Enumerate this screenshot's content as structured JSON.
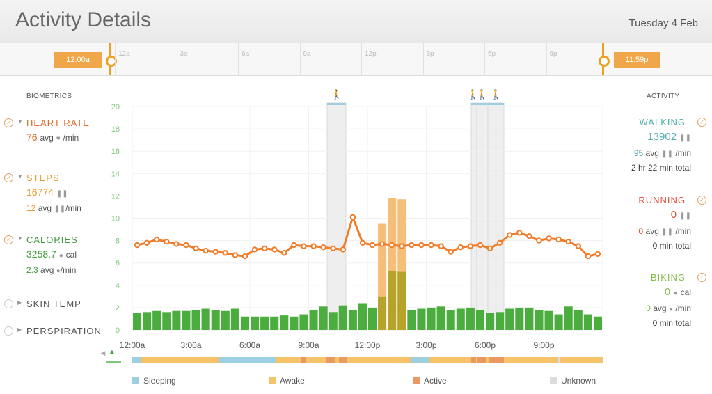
{
  "header": {
    "title": "Activity Details",
    "date": "Tuesday 4 Feb"
  },
  "timeline": {
    "start_label": "12:00a",
    "end_label": "11:59p",
    "ticks": [
      "12a",
      "3a",
      "6a",
      "9a",
      "12p",
      "3p",
      "6p",
      "9p"
    ]
  },
  "biometrics": {
    "section_label": "BIOMETRICS",
    "heart_rate": {
      "label": "HEART RATE",
      "value": "76",
      "unit_avg": "avg",
      "unit": "/min"
    },
    "steps": {
      "label": "STEPS",
      "value": "16774",
      "avg_value": "12",
      "avg_label": "avg",
      "unit": "/min"
    },
    "calories": {
      "label": "CALORIES",
      "value": "3258.7",
      "unit": "cal",
      "avg_value": "2.3",
      "avg_label": "avg",
      "rate_unit": "/min"
    },
    "skin_temp": {
      "label": "SKIN TEMP"
    },
    "perspiration": {
      "label": "PERSPIRATION"
    }
  },
  "activity": {
    "section_label": "ACTIVITY",
    "walking": {
      "label": "WALKING",
      "value": "13902",
      "avg_value": "95",
      "avg_label": "avg",
      "unit": "/min",
      "total": "2 hr 22 min total"
    },
    "running": {
      "label": "RUNNING",
      "value": "0",
      "avg_value": "0",
      "avg_label": "avg",
      "unit": "/min",
      "total": "0 min total"
    },
    "biking": {
      "label": "BIKING",
      "value": "0",
      "value_unit": "cal",
      "avg_value": "0",
      "avg_label": "avg",
      "unit": "/min",
      "total": "0 min total"
    }
  },
  "legend": {
    "sleeping": "Sleeping",
    "awake": "Awake",
    "active": "Active",
    "unknown": "Unknown"
  },
  "colors": {
    "green": "#4aad3e",
    "orange_line": "#f07c2a",
    "light_orange": "#f5bf7a",
    "olive": "#b5a32a",
    "sleeping": "#9ccfe0",
    "awake": "#f4c36a",
    "active": "#ea9960",
    "unknown": "#dcdcdc",
    "grid_label": "#7ec87a"
  },
  "chart_data": {
    "type": "bar",
    "y_ticks": [
      "0",
      "2",
      "4",
      "6",
      "8",
      "10",
      "12",
      "14",
      "16",
      "18",
      "20"
    ],
    "ylim": [
      0,
      20
    ],
    "x_tick_labels": [
      "12:00a",
      "3:00a",
      "6:00a",
      "9:00a",
      "12:00p",
      "3:00p",
      "6:00p",
      "9:00p"
    ],
    "bins": 48,
    "series": [
      {
        "values": [
          1.5,
          1.6,
          1.7,
          1.6,
          1.7,
          1.7,
          1.8,
          1.9,
          1.8,
          1.7,
          1.9,
          1.2,
          1.2,
          1.2,
          1.2,
          1.3,
          1.2,
          1.4,
          1.8,
          2.1,
          1.6,
          2.2,
          1.8,
          2.4,
          2.0,
          3.0,
          5.3,
          5.2,
          1.8,
          1.9,
          2.0,
          2.1,
          1.8,
          1.9,
          2.0,
          1.8,
          1.5,
          1.6,
          1.9,
          2.0,
          2.0,
          1.8,
          1.7,
          1.4,
          2.1,
          1.8,
          1.4,
          1.2
        ]
      },
      {
        "values": [
          0,
          0,
          0,
          0,
          0,
          0,
          0,
          0,
          0,
          0,
          0,
          0,
          0,
          0,
          0,
          0,
          0,
          0,
          0,
          0,
          0,
          0,
          0,
          0,
          0,
          6.5,
          6.5,
          6.5,
          0,
          0,
          0,
          0,
          0,
          0,
          0,
          0,
          0,
          0,
          0,
          0,
          0,
          0,
          0,
          0,
          0,
          0,
          0,
          0
        ]
      },
      {
        "values": [
          7.6,
          7.8,
          8.1,
          7.9,
          7.7,
          7.6,
          7.3,
          7.1,
          7.0,
          6.9,
          6.7,
          6.6,
          7.2,
          7.3,
          7.2,
          6.9,
          7.6,
          7.5,
          7.5,
          7.4,
          7.3,
          7.2,
          10.1,
          7.8,
          7.6,
          7.7,
          7.6,
          7.5,
          7.6,
          7.6,
          7.6,
          7.5,
          7.0,
          7.4,
          7.5,
          7.6,
          7.3,
          7.8,
          8.5,
          8.7,
          8.4,
          8.0,
          8.2,
          8.1,
          7.9,
          7.5,
          6.6,
          6.8
        ]
      }
    ]
  }
}
